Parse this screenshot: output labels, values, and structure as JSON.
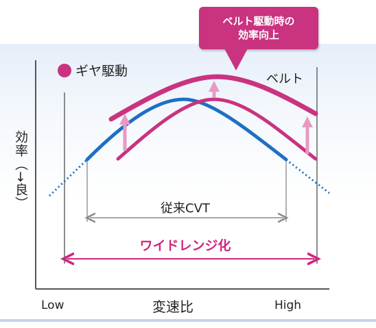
{
  "callout": {
    "line1": "ベルト駆動時の",
    "line2": "効率向上"
  },
  "legend": {
    "gear": "ギヤ駆動",
    "belt": "ベルト"
  },
  "ranges": {
    "conventional": "従来CVT",
    "wide": "ワイドレンジ化"
  },
  "axes": {
    "y": "効率（→良）",
    "x": "変速比",
    "x_low": "Low",
    "x_high": "High"
  },
  "colors": {
    "gear": "#1f6fc2",
    "belt": "#c9337f",
    "arrow_up": "#e79ac1",
    "range_conventional": "#8a8a8a",
    "range_wide": "#d0257e",
    "callout_bg": "#c9337f"
  }
}
